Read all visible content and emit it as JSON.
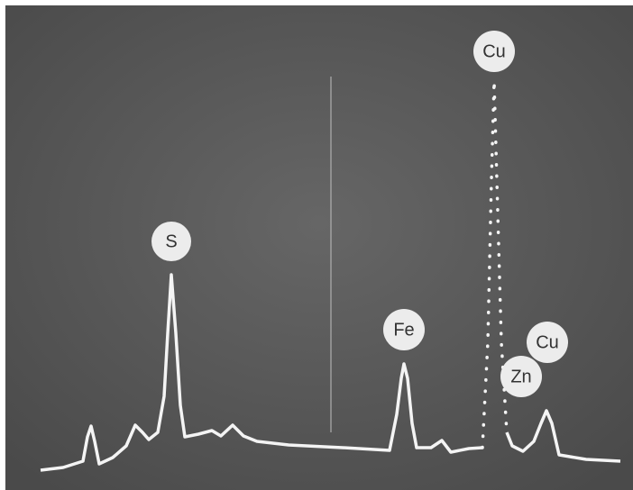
{
  "peaks": [
    {
      "label": "S"
    },
    {
      "label": "Cu"
    },
    {
      "label": "Fe"
    },
    {
      "label": "Cu"
    },
    {
      "label": "Zn"
    }
  ]
}
